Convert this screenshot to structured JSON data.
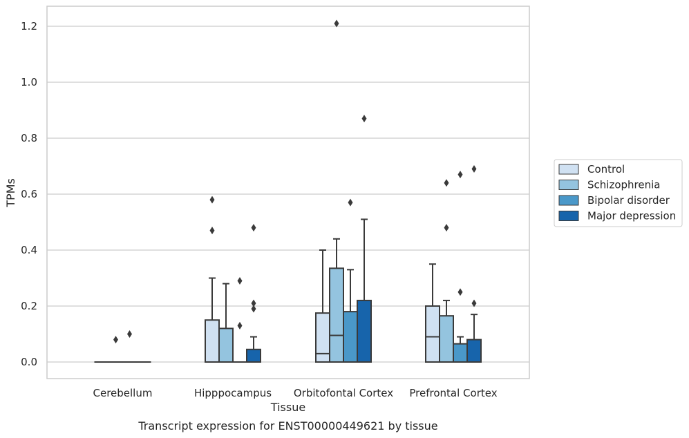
{
  "chart_data": {
    "type": "box",
    "caption": "Transcript expression for ENST00000449621 by tissue",
    "xlabel": "Tissue",
    "ylabel": "TPMs",
    "ylim": [
      -0.06,
      1.27
    ],
    "yticks": [
      0.0,
      0.2,
      0.4,
      0.6,
      0.8,
      1.0,
      1.2
    ],
    "ytick_labels": [
      "0.0",
      "0.2",
      "0.4",
      "0.6",
      "0.8",
      "1.0",
      "1.2"
    ],
    "grid": "horizontal",
    "legend_position": "right",
    "categories": [
      "Cerebellum",
      "Hipppocampus",
      "Orbitofontal Cortex",
      "Prefrontal Cortex"
    ],
    "series": [
      {
        "name": "Control",
        "color": "#d0e1f2",
        "boxes": [
          {
            "q1": 0,
            "median": 0,
            "q3": 0,
            "whislo": 0,
            "whishi": 0,
            "fliers": []
          },
          {
            "q1": 0,
            "median": 0,
            "q3": 0.15,
            "whislo": 0,
            "whishi": 0.3,
            "fliers": [
              0.47,
              0.58
            ]
          },
          {
            "q1": 0,
            "median": 0.03,
            "q3": 0.175,
            "whislo": 0,
            "whishi": 0.4,
            "fliers": []
          },
          {
            "q1": 0,
            "median": 0.09,
            "q3": 0.2,
            "whislo": 0,
            "whishi": 0.35,
            "fliers": []
          }
        ]
      },
      {
        "name": "Schizophrenia",
        "color": "#94c4df",
        "boxes": [
          {
            "q1": 0,
            "median": 0,
            "q3": 0,
            "whislo": 0,
            "whishi": 0,
            "fliers": [
              0.08
            ]
          },
          {
            "q1": 0,
            "median": 0,
            "q3": 0.12,
            "whislo": 0,
            "whishi": 0.28,
            "fliers": []
          },
          {
            "q1": 0,
            "median": 0.095,
            "q3": 0.335,
            "whislo": 0,
            "whishi": 0.44,
            "fliers": [
              1.21
            ]
          },
          {
            "q1": 0,
            "median": 0,
            "q3": 0.165,
            "whislo": 0,
            "whishi": 0.22,
            "fliers": [
              0.48,
              0.64
            ]
          }
        ]
      },
      {
        "name": "Bipolar disorder",
        "color": "#4a98c9",
        "boxes": [
          {
            "q1": 0,
            "median": 0,
            "q3": 0,
            "whislo": 0,
            "whishi": 0,
            "fliers": [
              0.1
            ]
          },
          {
            "q1": 0,
            "median": 0,
            "q3": 0,
            "whislo": 0,
            "whishi": 0,
            "fliers": [
              0.13,
              0.29
            ]
          },
          {
            "q1": 0,
            "median": 0,
            "q3": 0.18,
            "whislo": 0,
            "whishi": 0.33,
            "fliers": [
              0.57
            ]
          },
          {
            "q1": 0,
            "median": 0,
            "q3": 0.065,
            "whislo": 0,
            "whishi": 0.09,
            "fliers": [
              0.25,
              0.67
            ]
          }
        ]
      },
      {
        "name": "Major depression",
        "color": "#1764ab",
        "boxes": [
          {
            "q1": 0,
            "median": 0,
            "q3": 0,
            "whislo": 0,
            "whishi": 0,
            "fliers": []
          },
          {
            "q1": 0,
            "median": 0,
            "q3": 0.045,
            "whislo": 0,
            "whishi": 0.09,
            "fliers": [
              0.19,
              0.21,
              0.48
            ]
          },
          {
            "q1": 0,
            "median": 0,
            "q3": 0.22,
            "whislo": 0,
            "whishi": 0.51,
            "fliers": [
              0.87
            ]
          },
          {
            "q1": 0,
            "median": 0,
            "q3": 0.08,
            "whislo": 0,
            "whishi": 0.17,
            "fliers": [
              0.21,
              0.69
            ]
          }
        ]
      }
    ]
  }
}
